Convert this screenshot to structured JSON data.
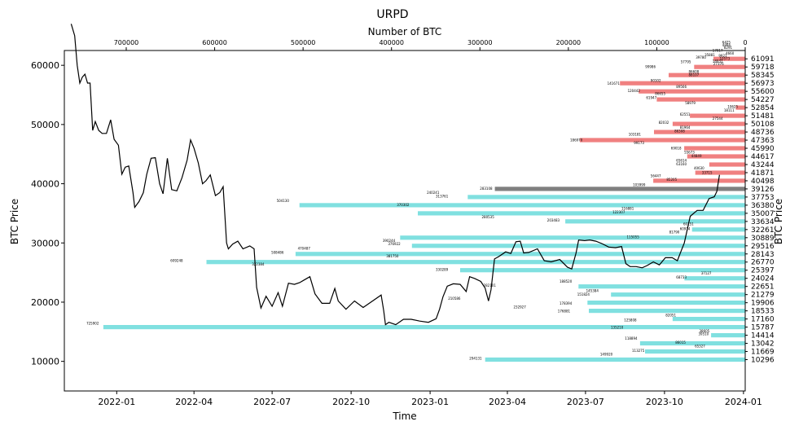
{
  "chart_data": {
    "type": "bar",
    "title": "URPD",
    "xlabel": "Time",
    "ylabel": "BTC Price",
    "ylabel_right": "BTC Price",
    "x2label": "Number of BTC",
    "ylim": [
      5000,
      62500
    ],
    "xlim": [
      "2021-11-01",
      "2024-01-03"
    ],
    "x2lim": [
      770000,
      0
    ],
    "x_ticks": [
      "2022-01",
      "2022-04",
      "2022-07",
      "2022-10",
      "2023-01",
      "2023-04",
      "2023-07",
      "2023-10",
      "2024-01"
    ],
    "y_ticks": [
      10000,
      20000,
      30000,
      40000,
      50000,
      60000
    ],
    "x2_ticks": [
      700000,
      600000,
      500000,
      400000,
      300000,
      200000,
      100000,
      0
    ],
    "x2_tick_labels": [
      "700000",
      "600000",
      "500000",
      "400000",
      "300000",
      "200000",
      "100000",
      "0"
    ],
    "current_price": 39126,
    "colors": {
      "above": "#f08080",
      "below": "#80e0e0",
      "current": "#808080",
      "line": "#000000"
    },
    "price_bins": [
      {
        "price": 61091,
        "btc": 35881
      },
      {
        "price": 59718,
        "btc": 57795
      },
      {
        "price": 58345,
        "btc": 86608
      },
      {
        "price": 56973,
        "btc": 141671
      },
      {
        "price": 55600,
        "btc": 120442
      },
      {
        "price": 54227,
        "btc": 99986
      },
      {
        "price": 52854,
        "btc": 10625
      },
      {
        "price": 51481,
        "btc": 62551
      },
      {
        "price": 50108,
        "btc": 82032
      },
      {
        "price": 48736,
        "btc": 103181
      },
      {
        "price": 47363,
        "btc": 186970
      },
      {
        "price": 45990,
        "btc": 69018
      },
      {
        "price": 44617,
        "btc": 65614
      },
      {
        "price": 43244,
        "btc": 40630
      },
      {
        "price": 41871,
        "btc": 56447
      },
      {
        "price": 40498,
        "btc": 103999
      },
      {
        "price": 39126,
        "btc": 283108
      },
      {
        "price": 37753,
        "btc": 313761
      },
      {
        "price": 36380,
        "btc": 504130
      },
      {
        "price": 35007,
        "btc": 370302
      },
      {
        "price": 33634,
        "btc": 203483
      },
      {
        "price": 32261,
        "btc": 60151
      },
      {
        "price": 30889,
        "btc": 390244
      },
      {
        "price": 29516,
        "btc": 376922
      },
      {
        "price": 28143,
        "btc": 508486
      },
      {
        "price": 26770,
        "btc": 609248
      },
      {
        "price": 25397,
        "btc": 322384
      },
      {
        "price": 24024,
        "btc": 68733
      },
      {
        "price": 22651,
        "btc": 188520
      },
      {
        "price": 21279,
        "btc": 151824
      },
      {
        "price": 19906,
        "btc": 178394
      },
      {
        "price": 18533,
        "btc": 176881
      },
      {
        "price": 17160,
        "btc": 82051
      },
      {
        "price": 15787,
        "btc": 725902
      },
      {
        "price": 14414,
        "btc": 38605
      },
      {
        "price": 13042,
        "btc": 118894
      },
      {
        "price": 11669,
        "btc": 113275
      },
      {
        "price": 10296,
        "btc": 294131
      }
    ],
    "bar_labels": [
      {
        "label": "6425",
        "price": 63850,
        "btc": 26000
      },
      {
        "label": "4894",
        "price": 63400,
        "btc": 26000
      },
      {
        "label": "8291",
        "price": 62950,
        "btc": 24000
      },
      {
        "label": "17017",
        "price": 62500,
        "btc": 37000
      },
      {
        "label": "4660",
        "price": 62050,
        "btc": 22000
      },
      {
        "label": "9921",
        "price": 61600,
        "btc": 30000
      },
      {
        "label": "10573",
        "price": 61150,
        "btc": 29000
      },
      {
        "label": "18931",
        "price": 60700,
        "btc": 37000
      },
      {
        "label": "27376",
        "price": 60250,
        "btc": 36000
      },
      {
        "label": "35881",
        "price": 61750,
        "btc": 46000
      },
      {
        "label": "39780",
        "price": 61300,
        "btc": 56000
      },
      {
        "label": "57795",
        "price": 60600,
        "btc": 73000
      },
      {
        "label": "99986",
        "price": 59750,
        "btc": 113000
      },
      {
        "label": "86608",
        "price": 58900,
        "btc": 64000
      },
      {
        "label": "88107",
        "price": 58400,
        "btc": 64000
      },
      {
        "label": "90102",
        "price": 57400,
        "btc": 107000
      },
      {
        "label": "141671",
        "price": 56900,
        "btc": 156000
      },
      {
        "label": "89566",
        "price": 56400,
        "btc": 78000
      },
      {
        "label": "120442",
        "price": 55700,
        "btc": 133000
      },
      {
        "label": "86655",
        "price": 55200,
        "btc": 102000
      },
      {
        "label": "61947",
        "price": 54500,
        "btc": 112000
      },
      {
        "label": "58979",
        "price": 53600,
        "btc": 68000
      },
      {
        "label": "10625",
        "price": 53000,
        "btc": 20000
      },
      {
        "label": "18111",
        "price": 52400,
        "btc": 24000
      },
      {
        "label": "62551",
        "price": 51700,
        "btc": 74000
      },
      {
        "label": "27544",
        "price": 51000,
        "btc": 37000
      },
      {
        "label": "82032",
        "price": 50300,
        "btc": 98000
      },
      {
        "label": "81964",
        "price": 49500,
        "btc": 74000
      },
      {
        "label": "86308",
        "price": 48900,
        "btc": 80000
      },
      {
        "label": "103181",
        "price": 48300,
        "btc": 132000
      },
      {
        "label": "186970",
        "price": 47400,
        "btc": 198000
      },
      {
        "label": "99173",
        "price": 46900,
        "btc": 126000
      },
      {
        "label": "69018",
        "price": 46000,
        "btc": 84000
      },
      {
        "label": "55673",
        "price": 45300,
        "btc": 69000
      },
      {
        "label": "44849",
        "price": 44700,
        "btc": 61000
      },
      {
        "label": "65614",
        "price": 43900,
        "btc": 78000
      },
      {
        "label": "63160",
        "price": 43300,
        "btc": 78000
      },
      {
        "label": "40630",
        "price": 42600,
        "btc": 58000
      },
      {
        "label": "33715",
        "price": 41900,
        "btc": 49000
      },
      {
        "label": "56447",
        "price": 41300,
        "btc": 107000
      },
      {
        "label": "85205",
        "price": 40700,
        "btc": 89000
      },
      {
        "label": "103999",
        "price": 39800,
        "btc": 127000
      },
      {
        "label": "283108",
        "price": 39200,
        "btc": 300000
      },
      {
        "label": "240241",
        "price": 38500,
        "btc": 360000
      },
      {
        "label": "313761",
        "price": 37850,
        "btc": 350000
      },
      {
        "label": "504130",
        "price": 37100,
        "btc": 530000
      },
      {
        "label": "370302",
        "price": 36450,
        "btc": 394000
      },
      {
        "label": "116881",
        "price": 35800,
        "btc": 140000
      },
      {
        "label": "122307",
        "price": 35200,
        "btc": 150000
      },
      {
        "label": "280535",
        "price": 34400,
        "btc": 298000
      },
      {
        "label": "203483",
        "price": 33800,
        "btc": 224000
      },
      {
        "label": "60151",
        "price": 33200,
        "btc": 70000
      },
      {
        "label": "60914",
        "price": 32400,
        "btc": 74000
      },
      {
        "label": "81790",
        "price": 31800,
        "btc": 86000
      },
      {
        "label": "115055",
        "price": 31000,
        "btc": 134000
      },
      {
        "label": "390244",
        "price": 30400,
        "btc": 410000
      },
      {
        "label": "376922",
        "price": 29800,
        "btc": 404000
      },
      {
        "label": "470487",
        "price": 29100,
        "btc": 506000
      },
      {
        "label": "508486",
        "price": 28400,
        "btc": 536000
      },
      {
        "label": "381750",
        "price": 27800,
        "btc": 406000
      },
      {
        "label": "609248",
        "price": 27000,
        "btc": 650000
      },
      {
        "label": "322384",
        "price": 26400,
        "btc": 558000
      },
      {
        "label": "330289",
        "price": 25500,
        "btc": 350000
      },
      {
        "label": "37127",
        "price": 24900,
        "btc": 50000
      },
      {
        "label": "68733",
        "price": 24200,
        "btc": 78000
      },
      {
        "label": "188520",
        "price": 23500,
        "btc": 210000
      },
      {
        "label": "282101",
        "price": 22800,
        "btc": 296000
      },
      {
        "label": "145384",
        "price": 21900,
        "btc": 180000
      },
      {
        "label": "151824",
        "price": 21300,
        "btc": 190000
      },
      {
        "label": "210586",
        "price": 20600,
        "btc": 336000
      },
      {
        "label": "178394",
        "price": 19800,
        "btc": 210000
      },
      {
        "label": "232927",
        "price": 19200,
        "btc": 262000
      },
      {
        "label": "176881",
        "price": 18500,
        "btc": 212000
      },
      {
        "label": "82051",
        "price": 17800,
        "btc": 90000
      },
      {
        "label": "125808",
        "price": 17000,
        "btc": 137000
      },
      {
        "label": "725902",
        "price": 16400,
        "btc": 745000
      },
      {
        "label": "135210",
        "price": 15700,
        "btc": 152000
      },
      {
        "label": "38605",
        "price": 15100,
        "btc": 52000
      },
      {
        "label": "39510",
        "price": 14600,
        "btc": 53000
      },
      {
        "label": "118894",
        "price": 13900,
        "btc": 136000
      },
      {
        "label": "86015",
        "price": 13200,
        "btc": 79000
      },
      {
        "label": "65327",
        "price": 12600,
        "btc": 57000
      },
      {
        "label": "113275",
        "price": 11800,
        "btc": 128000
      },
      {
        "label": "149920",
        "price": 11200,
        "btc": 164000
      },
      {
        "label": "294131",
        "price": 10500,
        "btc": 312000
      }
    ],
    "series": [
      {
        "type": "line",
        "x": [
          "2021-11-09",
          "2021-11-13",
          "2021-11-16",
          "2021-11-19",
          "2021-11-22",
          "2021-11-25",
          "2021-11-28",
          "2021-12-01",
          "2021-12-04",
          "2021-12-07",
          "2021-12-11",
          "2021-12-15",
          "2021-12-20",
          "2021-12-25",
          "2021-12-29",
          "2022-01-03",
          "2022-01-07",
          "2022-01-11",
          "2022-01-15",
          "2022-01-20",
          "2022-01-22",
          "2022-01-27",
          "2022-02-01",
          "2022-02-05",
          "2022-02-10",
          "2022-02-15",
          "2022-02-20",
          "2022-02-24",
          "2022-03-01",
          "2022-03-06",
          "2022-03-12",
          "2022-03-18",
          "2022-03-24",
          "2022-03-28",
          "2022-04-01",
          "2022-04-06",
          "2022-04-11",
          "2022-04-15",
          "2022-04-20",
          "2022-04-26",
          "2022-05-01",
          "2022-05-05",
          "2022-05-09",
          "2022-05-11",
          "2022-05-16",
          "2022-05-22",
          "2022-05-28",
          "2022-06-05",
          "2022-06-10",
          "2022-06-13",
          "2022-06-18",
          "2022-06-24",
          "2022-07-01",
          "2022-07-08",
          "2022-07-13",
          "2022-07-20",
          "2022-07-27",
          "2022-08-02",
          "2022-08-08",
          "2022-08-14",
          "2022-08-20",
          "2022-08-28",
          "2022-09-06",
          "2022-09-12",
          "2022-09-16",
          "2022-09-25",
          "2022-10-05",
          "2022-10-15",
          "2022-10-25",
          "2022-11-05",
          "2022-11-08",
          "2022-11-10",
          "2022-11-14",
          "2022-11-22",
          "2022-12-01",
          "2022-12-10",
          "2022-12-20",
          "2022-12-30",
          "2023-01-08",
          "2023-01-12",
          "2023-01-16",
          "2023-01-21",
          "2023-01-28",
          "2023-02-05",
          "2023-02-12",
          "2023-02-16",
          "2023-02-22",
          "2023-03-01",
          "2023-03-06",
          "2023-03-10",
          "2023-03-13",
          "2023-03-17",
          "2023-03-22",
          "2023-03-30",
          "2023-04-05",
          "2023-04-11",
          "2023-04-16",
          "2023-04-20",
          "2023-04-26",
          "2023-05-06",
          "2023-05-14",
          "2023-05-22",
          "2023-06-01",
          "2023-06-10",
          "2023-06-15",
          "2023-06-20",
          "2023-06-23",
          "2023-06-30",
          "2023-07-06",
          "2023-07-13",
          "2023-07-20",
          "2023-07-28",
          "2023-08-05",
          "2023-08-12",
          "2023-08-17",
          "2023-08-22",
          "2023-08-29",
          "2023-09-05",
          "2023-09-11",
          "2023-09-18",
          "2023-09-25",
          "2023-10-02",
          "2023-10-10",
          "2023-10-16",
          "2023-10-20",
          "2023-10-24",
          "2023-10-31",
          "2023-11-08",
          "2023-11-15",
          "2023-11-22",
          "2023-11-28",
          "2023-12-01",
          "2023-12-04"
        ],
        "values": [
          67000,
          65000,
          60000,
          57000,
          58000,
          58500,
          57000,
          57000,
          49000,
          50500,
          49000,
          48500,
          48500,
          50800,
          47500,
          46500,
          41600,
          42800,
          43000,
          38500,
          36000,
          37000,
          38500,
          41600,
          44300,
          44400,
          40000,
          38300,
          44300,
          39000,
          38800,
          41000,
          44000,
          47400,
          46000,
          43500,
          40000,
          40500,
          41500,
          38000,
          38500,
          39500,
          30000,
          29000,
          29800,
          30300,
          29000,
          29500,
          29000,
          22500,
          19000,
          21000,
          19300,
          21600,
          19300,
          23200,
          23000,
          23300,
          23800,
          24300,
          21400,
          19800,
          19800,
          22300,
          20200,
          18800,
          20200,
          19100,
          20100,
          21200,
          18500,
          16200,
          16600,
          16200,
          17100,
          17100,
          16800,
          16600,
          17200,
          18800,
          20900,
          22700,
          23100,
          23000,
          21800,
          24300,
          24000,
          23500,
          22400,
          20200,
          22100,
          27300,
          27700,
          28500,
          28200,
          30200,
          30300,
          28300,
          28400,
          29000,
          27000,
          26800,
          27200,
          25900,
          25600,
          28300,
          30500,
          30400,
          30500,
          30300,
          29900,
          29300,
          29200,
          29400,
          26500,
          26000,
          26000,
          25800,
          26200,
          26800,
          26300,
          27500,
          27500,
          27000,
          28500,
          30000,
          34500,
          35500,
          35500,
          37500,
          37800,
          38700,
          41500
        ]
      }
    ]
  }
}
